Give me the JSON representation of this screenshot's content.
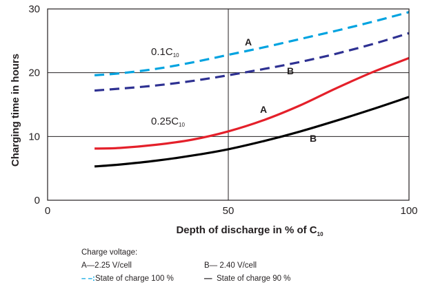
{
  "chart_data": {
    "type": "line",
    "xlabel": {
      "main": "Depth of discharge in % of C",
      "sub": "10"
    },
    "ylabel": "Charging time in hours",
    "xlim": [
      0,
      100
    ],
    "ylim": [
      0,
      30
    ],
    "x_ticks": [
      "0",
      "50",
      "100"
    ],
    "y_ticks": [
      "0",
      "10",
      "20",
      "30"
    ],
    "grid": {
      "x": [
        50
      ],
      "y": [
        10,
        20
      ]
    },
    "series": [
      {
        "group": "0.1C10",
        "curve": "A",
        "style": "dashed",
        "color": "#00a3e0",
        "x": [
          13,
          20,
          30,
          40,
          50,
          60,
          70,
          80,
          90,
          100
        ],
        "y": [
          19.6,
          19.9,
          20.6,
          21.6,
          22.8,
          24.0,
          25.3,
          26.6,
          28.0,
          29.5
        ]
      },
      {
        "group": "0.1C10",
        "curve": "B",
        "style": "dashed",
        "color": "#2e3192",
        "x": [
          13,
          20,
          30,
          40,
          50,
          60,
          70,
          80,
          90,
          100
        ],
        "y": [
          17.2,
          17.5,
          18.0,
          18.7,
          19.6,
          20.6,
          21.7,
          23.0,
          24.5,
          26.2
        ]
      },
      {
        "group": "0.25C10",
        "curve": "A",
        "style": "solid",
        "color": "#e4202a",
        "x": [
          13,
          20,
          30,
          40,
          50,
          60,
          70,
          80,
          90,
          100
        ],
        "y": [
          8.1,
          8.2,
          8.7,
          9.5,
          10.8,
          12.6,
          14.9,
          17.6,
          20.1,
          22.3
        ]
      },
      {
        "group": "0.25C10",
        "curve": "B",
        "style": "solid",
        "color": "#000000",
        "x": [
          13,
          20,
          30,
          40,
          50,
          60,
          70,
          80,
          90,
          100
        ],
        "y": [
          5.3,
          5.6,
          6.2,
          7.0,
          8.0,
          9.3,
          10.8,
          12.5,
          14.3,
          16.2
        ]
      }
    ],
    "annotations": {
      "rate_low": {
        "main": "0.1C",
        "sub": "10"
      },
      "rate_high": {
        "main": "0.25C",
        "sub": "10"
      },
      "curve_label_a": "A",
      "curve_label_b": "B"
    }
  },
  "legend": {
    "title": "Charge voltage:",
    "a_label": "A—2.25 V/cell",
    "b_label": "B— 2.40 V/cell",
    "dashed_marker": "– –:",
    "dashed_text": "State of charge 100 %",
    "solid_marker": "—",
    "solid_text": "State of charge 90 %"
  }
}
